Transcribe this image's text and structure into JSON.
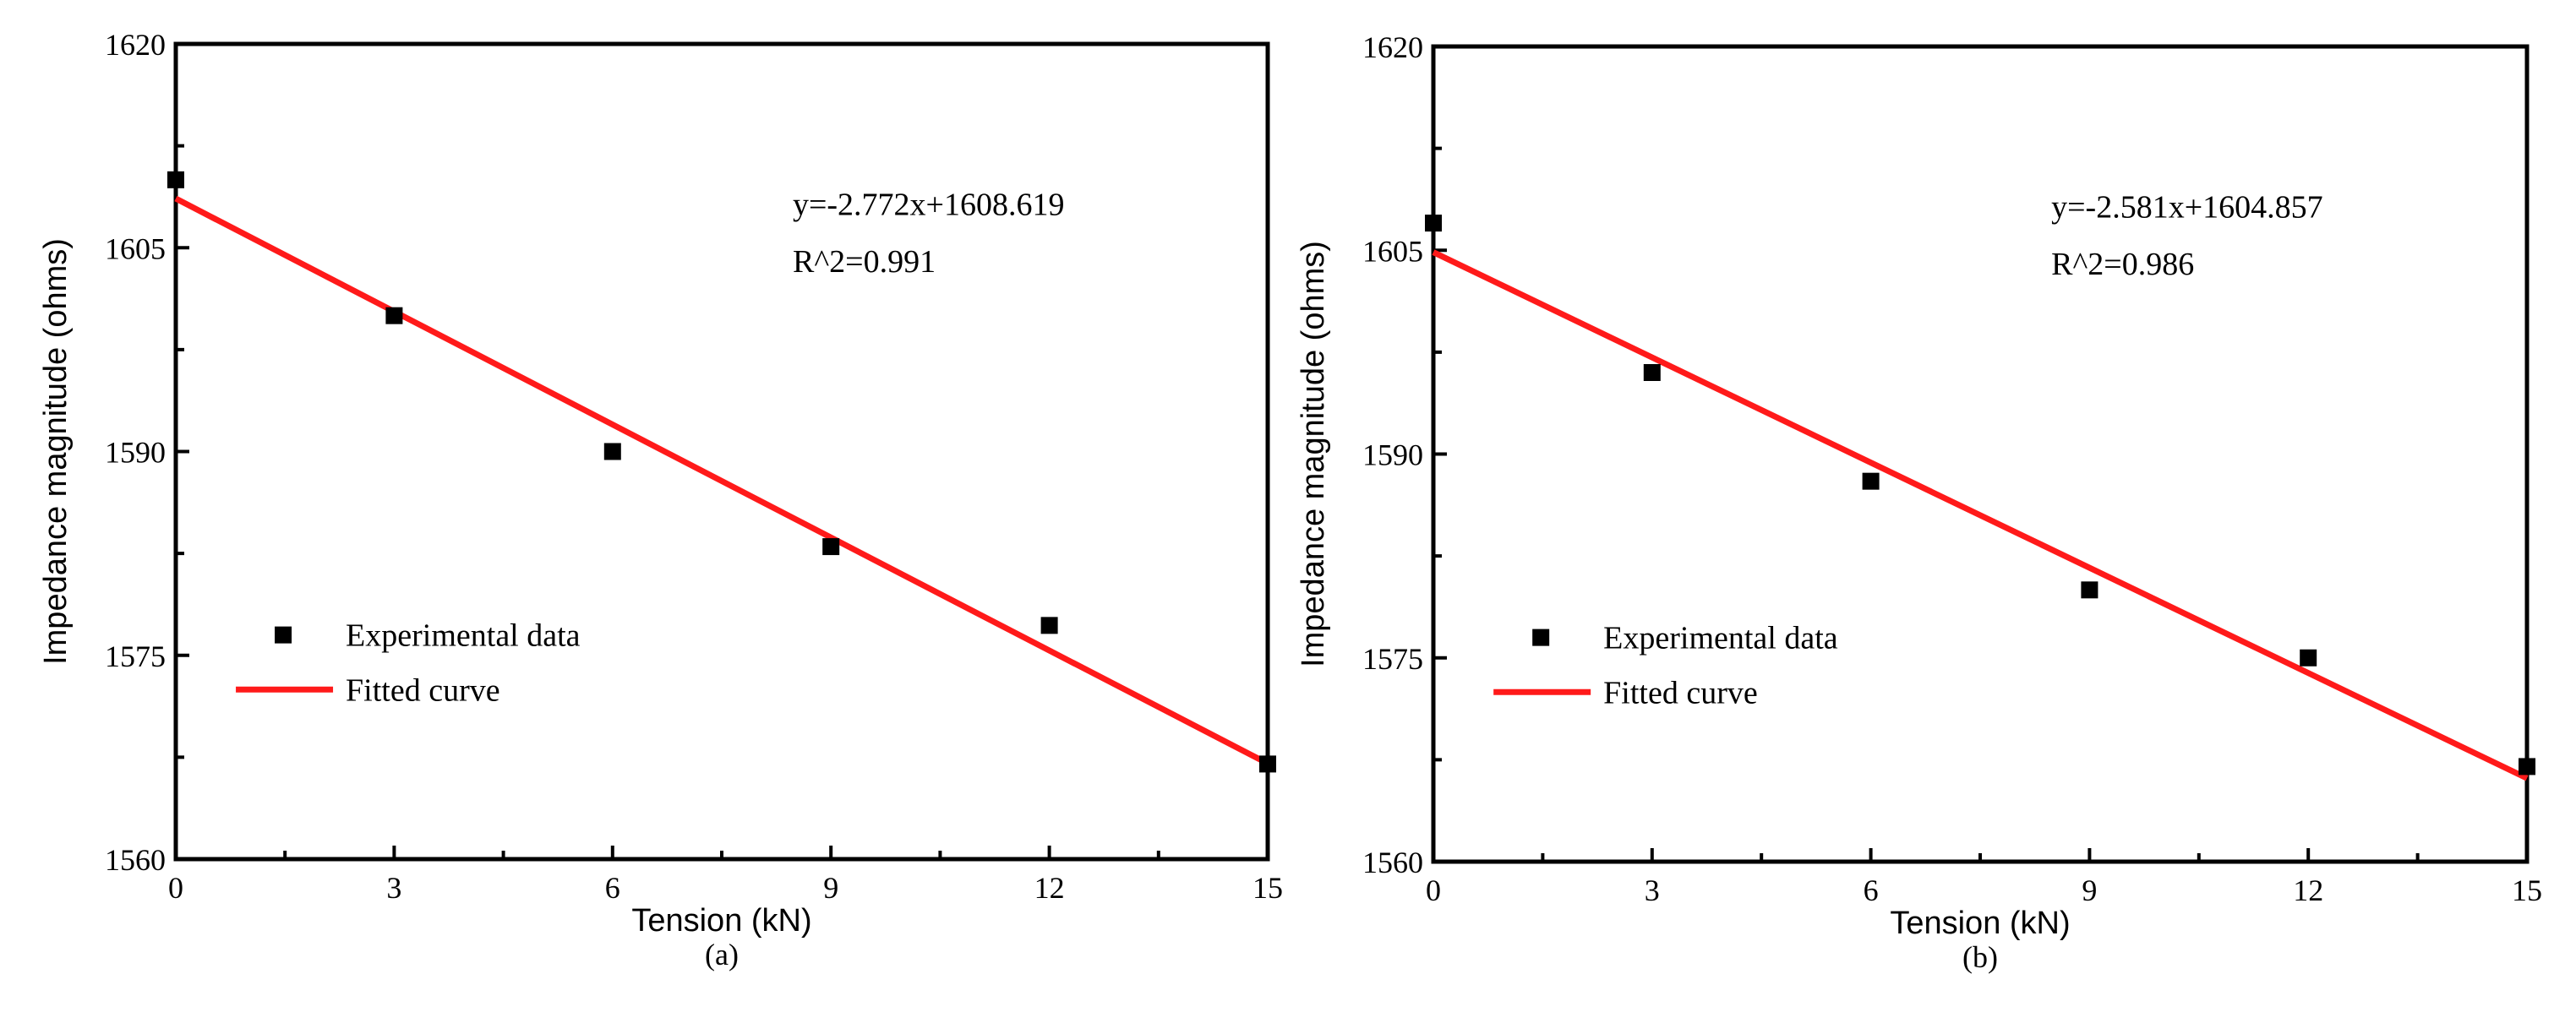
{
  "chart_data": [
    {
      "type": "scatter",
      "panel_label": "(a)",
      "xlabel": "Tension (kN)",
      "ylabel": "Impedance magnitude (ohms)",
      "xlim": [
        0,
        15
      ],
      "ylim": [
        1560,
        1620
      ],
      "xticks": [
        0,
        3,
        6,
        9,
        12,
        15
      ],
      "yticks": [
        1560,
        1575,
        1590,
        1605,
        1620
      ],
      "grid": false,
      "legend_position": "lower-left",
      "series": [
        {
          "name": "Experimental data",
          "kind": "scatter",
          "color": "#000000",
          "x": [
            0,
            3,
            6,
            9,
            12,
            15
          ],
          "y": [
            1610,
            1600,
            1590,
            1583,
            1577.2,
            1567
          ]
        },
        {
          "name": "Fitted curve",
          "kind": "line",
          "color": "#ff1a1a",
          "slope": -2.772,
          "intercept": 1608.619
        }
      ],
      "annotation": {
        "equation": "y=-2.772x+1608.619",
        "r2": "R^2=0.991"
      }
    },
    {
      "type": "scatter",
      "panel_label": "(b)",
      "xlabel": "Tension (kN)",
      "ylabel": "Impedance magnitude (ohms)",
      "xlim": [
        0,
        15
      ],
      "ylim": [
        1560,
        1620
      ],
      "xticks": [
        0,
        3,
        6,
        9,
        12,
        15
      ],
      "yticks": [
        1560,
        1575,
        1590,
        1605,
        1620
      ],
      "grid": false,
      "legend_position": "lower-left",
      "series": [
        {
          "name": "Experimental data",
          "kind": "scatter",
          "color": "#000000",
          "x": [
            0,
            3,
            6,
            9,
            12,
            15
          ],
          "y": [
            1607,
            1596,
            1588,
            1580,
            1575,
            1567
          ]
        },
        {
          "name": "Fitted curve",
          "kind": "line",
          "color": "#ff1a1a",
          "slope": -2.581,
          "intercept": 1604.857
        }
      ],
      "annotation": {
        "equation": "y=-2.581x+1604.857",
        "r2": "R^2=0.986"
      }
    }
  ]
}
